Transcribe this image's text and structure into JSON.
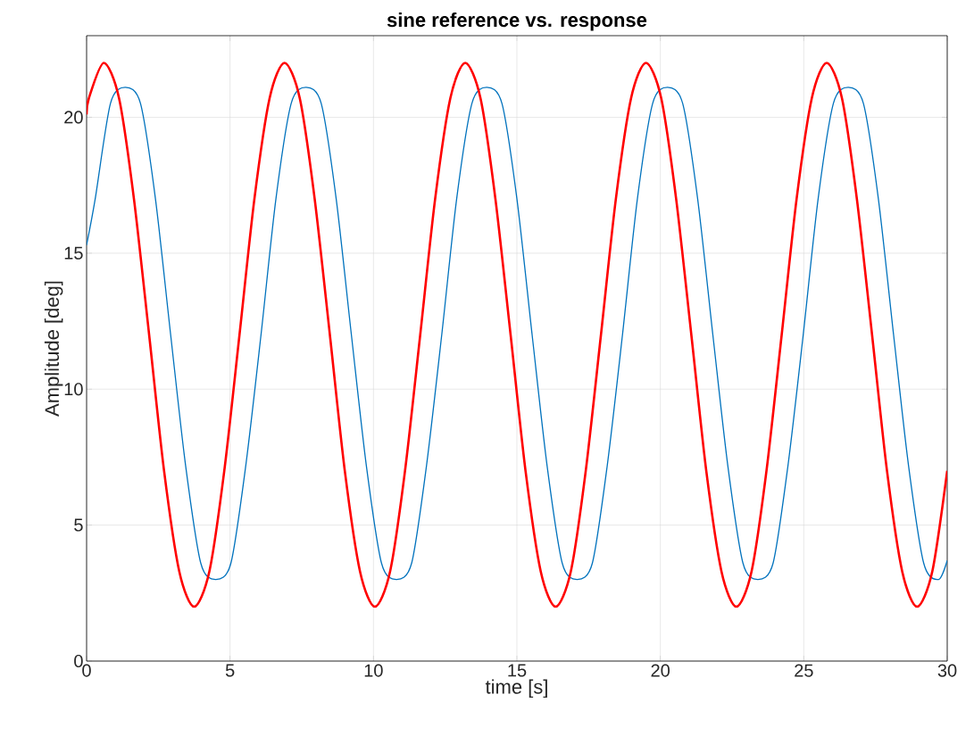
{
  "chart_data": {
    "type": "line",
    "title": "sine reference vs. response",
    "xlabel": "time [s]",
    "ylabel": "Amplitude [deg]",
    "xlim": [
      0,
      30
    ],
    "ylim": [
      0,
      23
    ],
    "xticks": [
      0,
      5,
      10,
      15,
      20,
      25,
      30
    ],
    "yticks": [
      0,
      5,
      10,
      15,
      20
    ],
    "grid": true,
    "series": [
      {
        "color": "#0072bd",
        "x": [
          0,
          0.3,
          0.83,
          1.35,
          1.88,
          2.4,
          2.93,
          3.45,
          3.98,
          4.5,
          5.03,
          5.55,
          6.08,
          6.6,
          7.13,
          7.65,
          8.18,
          8.7,
          9.23,
          9.75,
          10.28,
          10.8,
          11.33,
          11.85,
          12.38,
          12.9,
          13.43,
          13.95,
          14.48,
          15.0,
          15.53,
          16.05,
          16.58,
          17.1,
          17.63,
          18.15,
          18.68,
          19.2,
          19.73,
          20.25,
          20.78,
          21.3,
          21.83,
          22.35,
          22.88,
          23.4,
          23.93,
          24.45,
          24.98,
          25.5,
          26.03,
          26.55,
          27.08,
          27.6,
          28.13,
          28.65,
          29.18,
          29.7,
          30.0
        ],
        "values": [
          15.3,
          17.0,
          20.5,
          21.1,
          20.5,
          17.0,
          12.0,
          7.2,
          3.6,
          3.0,
          3.6,
          7.2,
          12.0,
          17.0,
          20.5,
          21.1,
          20.5,
          17.0,
          12.0,
          7.2,
          3.6,
          3.0,
          3.6,
          7.2,
          12.0,
          17.0,
          20.5,
          21.1,
          20.5,
          17.0,
          12.0,
          7.2,
          3.6,
          3.0,
          3.6,
          7.2,
          12.0,
          17.0,
          20.5,
          21.1,
          20.5,
          17.0,
          12.0,
          7.2,
          3.6,
          3.0,
          3.6,
          7.2,
          12.0,
          17.0,
          20.5,
          21.1,
          20.5,
          17.0,
          12.0,
          7.2,
          3.6,
          3.0,
          3.7
        ]
      },
      {
        "color": "#ff0000",
        "x": [
          0,
          0.08,
          0.6,
          1.13,
          1.65,
          2.18,
          2.7,
          3.23,
          3.75,
          4.28,
          4.8,
          5.33,
          5.85,
          6.38,
          6.9,
          7.43,
          7.95,
          8.48,
          9.0,
          9.53,
          10.05,
          10.58,
          11.1,
          11.63,
          12.15,
          12.68,
          13.2,
          13.73,
          14.25,
          14.78,
          15.3,
          15.83,
          16.35,
          16.88,
          17.4,
          17.93,
          18.45,
          18.98,
          19.5,
          20.03,
          20.55,
          21.08,
          21.6,
          22.13,
          22.65,
          23.18,
          23.7,
          24.23,
          24.75,
          25.28,
          25.8,
          26.33,
          26.85,
          27.38,
          27.9,
          28.43,
          28.95,
          29.48,
          30.0
        ],
        "values": [
          20.1,
          20.7,
          22.0,
          20.7,
          17.0,
          12.0,
          7.0,
          3.3,
          2.0,
          3.3,
          7.0,
          12.0,
          17.0,
          20.7,
          22.0,
          20.7,
          17.0,
          12.0,
          7.0,
          3.3,
          2.0,
          3.3,
          7.0,
          12.0,
          17.0,
          20.7,
          22.0,
          20.7,
          17.0,
          12.0,
          7.0,
          3.3,
          2.0,
          3.3,
          7.0,
          12.0,
          17.0,
          20.7,
          22.0,
          20.7,
          17.0,
          12.0,
          7.0,
          3.3,
          2.0,
          3.3,
          7.0,
          12.0,
          17.0,
          20.7,
          22.0,
          20.7,
          17.0,
          12.0,
          7.0,
          3.3,
          2.0,
          3.3,
          7.0
        ]
      }
    ]
  }
}
